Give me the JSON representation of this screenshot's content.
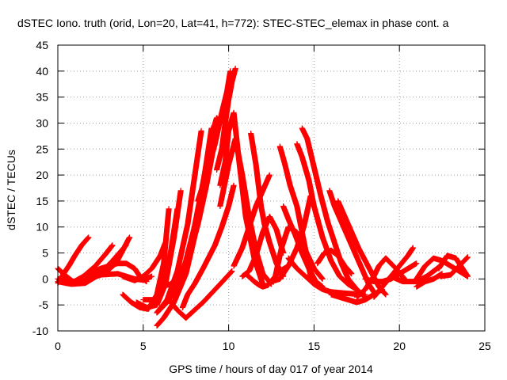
{
  "chart_data": {
    "type": "scatter",
    "title": "dSTEC Iono. truth (orid, Lon=20, Lat=41, h=772): STEC-STEC_elemax in phase cont. a",
    "xlabel": "GPS time / hours of day 017 of year 2014",
    "ylabel": "dSTEC  / TECUs",
    "xlim": [
      0,
      25
    ],
    "ylim": [
      -10,
      45
    ],
    "xticks": [
      "0",
      "5",
      "10",
      "15",
      "20",
      "25"
    ],
    "yticks": [
      "-10",
      "-5",
      "0",
      "5",
      "10",
      "15",
      "20",
      "25",
      "30",
      "35",
      "40",
      "45"
    ],
    "grid": true,
    "marker": "+",
    "colors": {
      "series": "#ff0000",
      "grid": "#a0a0a0",
      "axis": "#000000"
    },
    "series": [
      {
        "x": [
          0.0,
          0.5,
          1.0,
          1.5,
          1.9
        ],
        "y": [
          2.0,
          0.5,
          -0.8,
          -0.5,
          0.5
        ]
      },
      {
        "x": [
          0.0,
          0.3,
          0.7,
          1.0,
          1.4,
          1.8
        ],
        "y": [
          -0.8,
          0.8,
          2.8,
          4.5,
          6.5,
          8.0
        ]
      },
      {
        "x": [
          0.0,
          0.8,
          1.5,
          2.2,
          2.8,
          3.2
        ],
        "y": [
          0.0,
          -0.8,
          0.5,
          2.5,
          4.8,
          6.5
        ]
      },
      {
        "x": [
          0.0,
          0.8,
          1.6,
          2.4,
          3.2,
          4.0
        ],
        "y": [
          -0.5,
          -1.0,
          -0.8,
          0.8,
          3.5,
          6.5
        ]
      },
      {
        "x": [
          0.0,
          1.0,
          2.0,
          2.7,
          3.4,
          3.8,
          4.2
        ],
        "y": [
          0.0,
          -0.5,
          0.2,
          1.0,
          3.0,
          5.5,
          8.0
        ]
      },
      {
        "x": [
          1.8,
          2.5,
          3.0,
          3.5,
          4.0,
          4.5,
          4.8,
          5.2
        ],
        "y": [
          1.0,
          2.0,
          2.5,
          3.0,
          3.0,
          2.0,
          0.5,
          -0.5
        ]
      },
      {
        "x": [
          1.5,
          2.5,
          3.5,
          4.5,
          5.0,
          5.5
        ],
        "y": [
          0.3,
          0.8,
          1.0,
          0.0,
          -0.2,
          0.5
        ]
      },
      {
        "x": [
          3.8,
          4.5,
          5.0,
          5.5,
          6.0,
          6.3
        ],
        "y": [
          0.5,
          -0.3,
          0.5,
          2.0,
          4.5,
          7.0
        ]
      },
      {
        "x": [
          3.8,
          4.3,
          4.8,
          5.3,
          5.8,
          6.2,
          6.5
        ],
        "y": [
          -3.0,
          -4.5,
          -5.5,
          -5.8,
          -3.0,
          3.0,
          13.5
        ]
      },
      {
        "x": [
          4.6,
          5.2,
          5.8,
          6.3,
          6.8,
          7.2
        ],
        "y": [
          -4.5,
          -5.5,
          -5.0,
          -1.0,
          8.0,
          17.0
        ]
      },
      {
        "x": [
          5.0,
          5.6,
          6.2,
          6.6,
          7.0
        ],
        "y": [
          -4.0,
          -4.0,
          -1.5,
          5.0,
          13.5
        ]
      },
      {
        "x": [
          5.8,
          6.4,
          7.0,
          7.6,
          8.0,
          8.4
        ],
        "y": [
          -6.5,
          -4.0,
          1.5,
          10.5,
          19.5,
          28.5
        ]
      },
      {
        "x": [
          5.8,
          6.2,
          6.8,
          7.5,
          8.0,
          8.5,
          9.0
        ],
        "y": [
          -9.0,
          -7.5,
          -4.5,
          1.0,
          8.0,
          18.0,
          29.0
        ]
      },
      {
        "x": [
          5.8,
          6.4,
          7.0,
          7.5,
          8.0,
          8.5,
          9.0,
          9.3,
          9.5
        ],
        "y": [
          -6.5,
          -4.5,
          -1.5,
          3.5,
          10.0,
          18.5,
          27.5,
          31.0,
          30.0
        ]
      },
      {
        "x": [
          6.0,
          6.6,
          7.2,
          7.7,
          8.2,
          8.7,
          9.1
        ],
        "y": [
          -1.5,
          -1.0,
          1.0,
          4.5,
          10.5,
          18.0,
          25.0
        ]
      },
      {
        "x": [
          6.5,
          7.0,
          7.5,
          8.5,
          9.5,
          10.2
        ],
        "y": [
          -4.0,
          -6.0,
          -7.5,
          -4.5,
          -1.0,
          1.5
        ]
      },
      {
        "x": [
          7.3,
          7.6,
          8.0,
          8.5,
          9.2,
          9.6,
          10.0,
          10.3
        ],
        "y": [
          -5.5,
          -3.0,
          -1.0,
          2.0,
          6.5,
          10.0,
          14.0,
          18.0
        ]
      },
      {
        "x": [
          8.2,
          8.7,
          9.2,
          9.6,
          9.9,
          10.1
        ],
        "y": [
          15.0,
          20.0,
          26.0,
          32.0,
          36.0,
          40.0
        ]
      },
      {
        "x": [
          9.3,
          9.6,
          9.8,
          10.0,
          10.2,
          10.4
        ],
        "y": [
          21.0,
          25.0,
          30.0,
          34.5,
          38.0,
          40.5
        ]
      },
      {
        "x": [
          9.5,
          9.8,
          10.0,
          10.3,
          10.6,
          11.0,
          11.5,
          12.0
        ],
        "y": [
          18.0,
          22.5,
          28.5,
          32.0,
          23.0,
          12.0,
          4.0,
          -1.0
        ]
      },
      {
        "x": [
          9.5,
          10.0,
          10.4,
          10.8,
          11.2,
          11.6,
          12.0,
          12.5
        ],
        "y": [
          14.0,
          22.0,
          27.0,
          20.0,
          12.0,
          5.5,
          1.0,
          -1.0
        ]
      },
      {
        "x": [
          10.3,
          10.8,
          11.2,
          11.6,
          12.0,
          12.4
        ],
        "y": [
          2.5,
          6.0,
          10.0,
          14.0,
          17.0,
          20.0
        ]
      },
      {
        "x": [
          10.8,
          11.2,
          11.6,
          12.0,
          12.4,
          12.8,
          13.2
        ],
        "y": [
          0.5,
          1.5,
          4.5,
          9.0,
          12.0,
          9.5,
          5.0
        ]
      },
      {
        "x": [
          11.0,
          11.5,
          11.8,
          12.0,
          12.3,
          12.6,
          13.0,
          13.5
        ],
        "y": [
          1.0,
          -0.5,
          -1.2,
          -1.5,
          -1.2,
          0.0,
          1.5,
          2.5
        ]
      },
      {
        "x": [
          11.3,
          11.6,
          11.9,
          12.1,
          12.4,
          12.8,
          13.2
        ],
        "y": [
          28.0,
          22.0,
          14.0,
          10.5,
          7.0,
          3.0,
          0.5
        ]
      },
      {
        "x": [
          12.5,
          13.0,
          13.5,
          14.0,
          14.4,
          14.6,
          14.8
        ],
        "y": [
          -0.5,
          0.0,
          2.5,
          6.0,
          10.0,
          13.0,
          16.0
        ]
      },
      {
        "x": [
          12.7,
          13.1,
          13.5,
          14.0,
          14.5,
          15.0,
          15.5
        ],
        "y": [
          0.0,
          6.0,
          10.0,
          9.0,
          5.5,
          2.0,
          0.0
        ]
      },
      {
        "x": [
          13.0,
          13.3,
          13.6,
          14.0,
          14.3,
          14.6,
          14.8,
          15.0
        ],
        "y": [
          25.5,
          22.0,
          18.0,
          14.0,
          9.0,
          4.0,
          0.5,
          0.0
        ]
      },
      {
        "x": [
          13.2,
          13.5,
          13.9,
          14.3,
          14.7,
          15.1,
          15.5
        ],
        "y": [
          14.0,
          11.5,
          8.5,
          5.0,
          2.0,
          -0.5,
          -1.5
        ]
      },
      {
        "x": [
          13.5,
          14.0,
          14.5,
          15.0,
          15.5,
          16.0,
          17.0,
          18.0
        ],
        "y": [
          4.0,
          2.0,
          0.5,
          -1.0,
          -2.0,
          -2.5,
          -2.8,
          -3.0
        ]
      },
      {
        "x": [
          14.0,
          14.3,
          14.7,
          15.0,
          15.5,
          16.0,
          16.5,
          17.0,
          17.5
        ],
        "y": [
          26.0,
          23.5,
          19.0,
          14.0,
          8.0,
          3.5,
          0.5,
          -1.0,
          -2.0
        ]
      },
      {
        "x": [
          14.3,
          14.6,
          15.0,
          15.4,
          15.8,
          16.2,
          16.6,
          17.0,
          17.5,
          18.0
        ],
        "y": [
          29.0,
          27.0,
          21.5,
          16.0,
          11.0,
          7.0,
          3.0,
          0.0,
          -2.0,
          -3.5
        ]
      },
      {
        "x": [
          15.2,
          15.6,
          16.0,
          16.4,
          16.8,
          17.2
        ],
        "y": [
          3.0,
          5.0,
          5.5,
          4.5,
          2.5,
          1.0
        ]
      },
      {
        "x": [
          15.9,
          16.2,
          16.6,
          17.0,
          17.4,
          17.8,
          18.2,
          18.6
        ],
        "y": [
          17.0,
          14.0,
          11.0,
          8.0,
          5.0,
          2.0,
          -1.0,
          -3.0
        ]
      },
      {
        "x": [
          16.4,
          16.8,
          17.2,
          17.6,
          18.0,
          18.4,
          18.8,
          19.2
        ],
        "y": [
          15.0,
          12.0,
          9.0,
          6.0,
          3.5,
          1.0,
          -1.5,
          -3.0
        ]
      },
      {
        "x": [
          16.0,
          16.5,
          17.0,
          17.5,
          18.0,
          18.5,
          19.0
        ],
        "y": [
          -3.0,
          -3.5,
          -4.0,
          -4.5,
          -4.0,
          -3.0,
          -2.0
        ]
      },
      {
        "x": [
          17.5,
          18.0,
          18.5,
          18.8,
          19.2,
          19.8,
          20.3
        ],
        "y": [
          -3.5,
          -2.0,
          0.5,
          2.5,
          4.0,
          2.0,
          0.0
        ]
      },
      {
        "x": [
          18.0,
          18.5,
          19.0,
          19.5,
          20.0,
          20.5,
          21.0
        ],
        "y": [
          0.0,
          -0.5,
          -0.5,
          0.0,
          1.0,
          2.0,
          3.0
        ]
      },
      {
        "x": [
          18.5,
          19.0,
          19.5,
          20.0,
          20.5,
          20.8
        ],
        "y": [
          -3.5,
          -1.5,
          0.5,
          2.5,
          4.5,
          6.0
        ]
      },
      {
        "x": [
          19.5,
          20.2,
          21.0,
          21.6,
          22.0,
          22.4
        ],
        "y": [
          0.5,
          -0.5,
          -0.5,
          0.5,
          1.5,
          2.5
        ]
      },
      {
        "x": [
          21.0,
          21.5,
          22.0,
          22.5
        ],
        "y": [
          -1.5,
          -0.5,
          0.0,
          1.0
        ]
      },
      {
        "x": [
          21.0,
          21.5,
          22.0,
          22.5,
          23.0,
          23.5,
          24.0
        ],
        "y": [
          0.0,
          2.5,
          4.0,
          3.5,
          2.5,
          1.5,
          0.5
        ]
      },
      {
        "x": [
          22.3,
          22.8,
          23.3,
          23.8,
          24.0
        ],
        "y": [
          2.0,
          4.5,
          4.0,
          1.5,
          0.5
        ]
      },
      {
        "x": [
          22.4,
          23.0,
          23.5,
          24.0
        ],
        "y": [
          0.5,
          0.8,
          2.5,
          4.2
        ]
      }
    ]
  }
}
